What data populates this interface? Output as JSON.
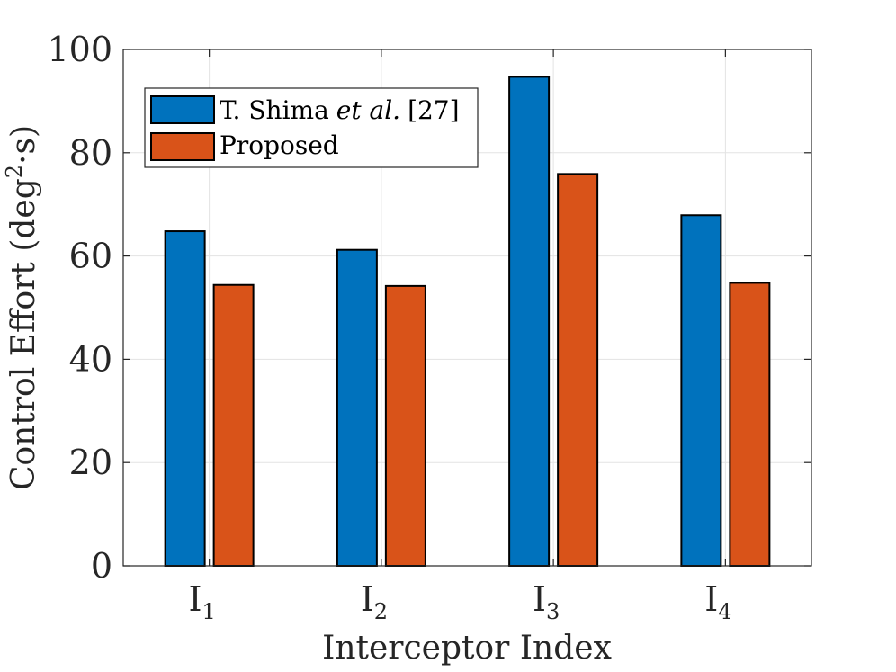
{
  "chart_data": {
    "type": "bar",
    "title": "",
    "xlabel": "Interceptor Index",
    "ylabel": "Control Effort (deg",
    "ylabel_superscript": "2",
    "ylabel_suffix": "·s)",
    "categories": [
      {
        "base": "I",
        "sub": "1"
      },
      {
        "base": "I",
        "sub": "2"
      },
      {
        "base": "I",
        "sub": "3"
      },
      {
        "base": "I",
        "sub": "4"
      }
    ],
    "series": [
      {
        "name": "T. Shima",
        "name_italic": "et al.",
        "name_ref": "[27]",
        "color": "#0072BD",
        "values": [
          64.8,
          61.2,
          94.7,
          67.9
        ]
      },
      {
        "name": "Proposed",
        "color": "#D95319",
        "values": [
          54.4,
          54.2,
          75.9,
          54.8
        ]
      }
    ],
    "ylim": [
      0,
      100
    ],
    "yticks": [
      0,
      20,
      40,
      60,
      80,
      100
    ],
    "grid": true,
    "legend_position": "top-left"
  }
}
